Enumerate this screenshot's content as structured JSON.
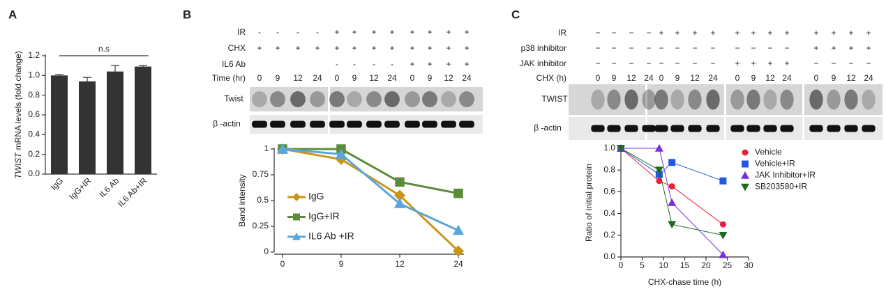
{
  "panels": [
    "A",
    "B",
    "C"
  ],
  "chart_data": [
    {
      "type": "bar",
      "y_label_italic": "TWIST",
      "y_label": "mRNA levels (fold change)",
      "categories": [
        "IgG",
        "IgG+IR",
        "IL6 Ab",
        "IL6 Ab+IR"
      ],
      "values": [
        1.0,
        0.94,
        1.04,
        1.09
      ],
      "errors": [
        0.01,
        0.04,
        0.06,
        0.01
      ],
      "color": "#333333",
      "annotation": "n.s",
      "ylim": [
        0,
        1.2
      ],
      "yticks": [
        {
          "value": 0,
          "label": "0.0"
        },
        0.2,
        0.4,
        0.6,
        0.8,
        {
          "value": 1,
          "label": "1.0"
        },
        1.2
      ]
    },
    {
      "type": "line",
      "y_label": "Band intensity",
      "categories": [
        0,
        9,
        12,
        24
      ],
      "series": [
        {
          "name": "IgG",
          "color": "#c9961c",
          "marker": "diamond",
          "values": [
            1,
            0.9,
            0.55,
            0.01
          ]
        },
        {
          "name": "IgG+IR",
          "color": "#5b8c3a",
          "marker": "square",
          "values": [
            1,
            1,
            0.68,
            0.57
          ]
        },
        {
          "name": "IL6 Ab +IR",
          "color": "#5aa5dc",
          "marker": "triangle",
          "values": [
            1,
            0.95,
            0.47,
            0.21
          ]
        }
      ],
      "ylim": [
        0,
        1
      ],
      "yticks": [
        0,
        0.25,
        0.5,
        0.75,
        1
      ]
    },
    {
      "type": "line",
      "x_label": "CHX-chase time (h)",
      "y_label": "Ratio of initial protein",
      "x": [
        0,
        9,
        12,
        24
      ],
      "series": [
        {
          "name": "Vehicle",
          "color": "#e8213a",
          "marker": "circle",
          "values": [
            1,
            0.7,
            0.65,
            0.3
          ]
        },
        {
          "name": "Vehicle+IR",
          "color": "#2456e6",
          "marker": "square",
          "values": [
            1,
            0.76,
            0.87,
            0.7
          ]
        },
        {
          "name": "JAK Inhibitor+IR",
          "color": "#7a2ee0",
          "marker": "triangle",
          "values": [
            1,
            1.0,
            0.5,
            0.02
          ]
        },
        {
          "name": "SB203580+IR",
          "color": "#1d6b1d",
          "marker": "triangle-down",
          "values": [
            1,
            0.8,
            0.3,
            0.2
          ]
        }
      ],
      "xlim": [
        0,
        30
      ],
      "xticks": [
        0,
        5,
        10,
        15,
        20,
        25,
        30
      ],
      "ylim": [
        0,
        1
      ],
      "yticks": [
        {
          "value": 0,
          "label": "0.0"
        },
        0.2,
        0.4,
        0.6,
        0.8,
        {
          "value": 1,
          "label": "1.0"
        }
      ]
    }
  ],
  "blots": [
    {
      "rows": [
        {
          "label": "IR",
          "cells": [
            "-",
            "-",
            "-",
            "-",
            "+",
            "+",
            "+",
            "+",
            "+",
            "+",
            "+",
            "+"
          ]
        },
        {
          "label": "CHX",
          "cells": [
            "+",
            "+",
            "+",
            "+",
            "+",
            "+",
            "+",
            "+",
            "+",
            "+",
            "+",
            "+"
          ]
        },
        {
          "label": "IL6 Ab",
          "cells": [
            null,
            null,
            null,
            null,
            "-",
            "-",
            "-",
            "-",
            "+",
            "+",
            "+",
            "+"
          ]
        },
        {
          "label": "Time (hr)",
          "cells": [
            "0",
            "9",
            "12",
            "24",
            "0",
            "9",
            "12",
            "24",
            "0",
            "9",
            "12",
            "24"
          ]
        }
      ],
      "bands": [
        "Twist",
        "β -actin"
      ]
    },
    {
      "rows": [
        {
          "label": "IR",
          "cells": [
            "−",
            "−",
            "−",
            "−",
            "+",
            "+",
            "+",
            "+",
            "+",
            "+",
            "+",
            "+",
            "+",
            "+",
            "+",
            "+"
          ]
        },
        {
          "label": "p38 inhibitor",
          "cells": [
            "−",
            "−",
            "−",
            "−",
            "−",
            "−",
            "−",
            "−",
            "−",
            "−",
            "−",
            "−",
            "+",
            "+",
            "+",
            "+"
          ]
        },
        {
          "label": "JAK inhibitor",
          "cells": [
            "−",
            "−",
            "−",
            "−",
            "−",
            "−",
            "−",
            "−",
            "+",
            "+",
            "+",
            "+",
            "−",
            "−",
            "−",
            "−"
          ]
        },
        {
          "label": "CHX  (h)",
          "cells": [
            "0",
            "9",
            "12",
            "24",
            "0",
            "9",
            "12",
            "24",
            "0",
            "9",
            "12",
            "24",
            "0",
            "9",
            "12",
            "24"
          ]
        }
      ],
      "bands": [
        "TWIST",
        "β -actin"
      ]
    }
  ]
}
